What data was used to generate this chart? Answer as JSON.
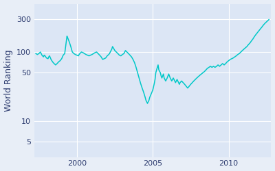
{
  "title": "",
  "ylabel": "World Ranking",
  "xlabel": "",
  "line_color": "#00c8c8",
  "background_color": "#e8eef7",
  "figure_facecolor": "#e8eef7",
  "axes_facecolor": "#dce6f5",
  "line_width": 1.1,
  "xlim_start": 1997.2,
  "xlim_end": 2012.8,
  "ylim_bottom": 3,
  "ylim_top": 500,
  "yticks": [
    5,
    10,
    50,
    100,
    300
  ],
  "xticks": [
    2000,
    2005,
    2010
  ],
  "spine_color": "#aaaacc",
  "data_points": [
    [
      1997.3,
      95
    ],
    [
      1997.4,
      92
    ],
    [
      1997.5,
      95
    ],
    [
      1997.6,
      100
    ],
    [
      1997.7,
      90
    ],
    [
      1997.8,
      85
    ],
    [
      1997.85,
      90
    ],
    [
      1997.9,
      88
    ],
    [
      1998.0,
      82
    ],
    [
      1998.1,
      80
    ],
    [
      1998.15,
      85
    ],
    [
      1998.2,
      88
    ],
    [
      1998.3,
      78
    ],
    [
      1998.4,
      72
    ],
    [
      1998.5,
      68
    ],
    [
      1998.6,
      65
    ],
    [
      1998.7,
      68
    ],
    [
      1998.8,
      72
    ],
    [
      1998.9,
      75
    ],
    [
      1999.0,
      80
    ],
    [
      1999.05,
      85
    ],
    [
      1999.1,
      90
    ],
    [
      1999.2,
      95
    ],
    [
      1999.3,
      140
    ],
    [
      1999.35,
      170
    ],
    [
      1999.4,
      160
    ],
    [
      1999.5,
      140
    ],
    [
      1999.6,
      120
    ],
    [
      1999.7,
      100
    ],
    [
      1999.8,
      95
    ],
    [
      1999.9,
      92
    ],
    [
      2000.0,
      90
    ],
    [
      2000.1,
      88
    ],
    [
      2000.15,
      92
    ],
    [
      2000.2,
      95
    ],
    [
      2000.3,
      100
    ],
    [
      2000.4,
      98
    ],
    [
      2000.5,
      95
    ],
    [
      2000.6,
      92
    ],
    [
      2000.7,
      90
    ],
    [
      2000.8,
      88
    ],
    [
      2000.9,
      90
    ],
    [
      2001.0,
      92
    ],
    [
      2001.1,
      95
    ],
    [
      2001.2,
      98
    ],
    [
      2001.3,
      100
    ],
    [
      2001.4,
      95
    ],
    [
      2001.5,
      90
    ],
    [
      2001.6,
      85
    ],
    [
      2001.7,
      78
    ],
    [
      2001.8,
      80
    ],
    [
      2001.9,
      82
    ],
    [
      2002.0,
      88
    ],
    [
      2002.1,
      92
    ],
    [
      2002.15,
      95
    ],
    [
      2002.2,
      100
    ],
    [
      2002.3,
      110
    ],
    [
      2002.35,
      120
    ],
    [
      2002.4,
      115
    ],
    [
      2002.5,
      105
    ],
    [
      2002.6,
      100
    ],
    [
      2002.7,
      95
    ],
    [
      2002.8,
      90
    ],
    [
      2002.9,
      88
    ],
    [
      2003.0,
      92
    ],
    [
      2003.1,
      95
    ],
    [
      2003.15,
      100
    ],
    [
      2003.2,
      105
    ],
    [
      2003.3,
      100
    ],
    [
      2003.4,
      95
    ],
    [
      2003.5,
      90
    ],
    [
      2003.6,
      85
    ],
    [
      2003.7,
      78
    ],
    [
      2003.8,
      70
    ],
    [
      2003.9,
      60
    ],
    [
      2004.0,
      50
    ],
    [
      2004.1,
      42
    ],
    [
      2004.2,
      35
    ],
    [
      2004.3,
      30
    ],
    [
      2004.4,
      26
    ],
    [
      2004.5,
      22
    ],
    [
      2004.55,
      20
    ],
    [
      2004.6,
      19
    ],
    [
      2004.65,
      18
    ],
    [
      2004.7,
      19
    ],
    [
      2004.75,
      20
    ],
    [
      2004.8,
      22
    ],
    [
      2005.0,
      28
    ],
    [
      2005.1,
      35
    ],
    [
      2005.15,
      40
    ],
    [
      2005.2,
      50
    ],
    [
      2005.3,
      60
    ],
    [
      2005.35,
      65
    ],
    [
      2005.4,
      55
    ],
    [
      2005.5,
      50
    ],
    [
      2005.55,
      45
    ],
    [
      2005.6,
      42
    ],
    [
      2005.65,
      45
    ],
    [
      2005.7,
      48
    ],
    [
      2005.75,
      42
    ],
    [
      2005.8,
      40
    ],
    [
      2005.85,
      38
    ],
    [
      2005.9,
      40
    ],
    [
      2005.95,
      42
    ],
    [
      2006.0,
      45
    ],
    [
      2006.05,
      48
    ],
    [
      2006.1,
      45
    ],
    [
      2006.15,
      42
    ],
    [
      2006.2,
      40
    ],
    [
      2006.25,
      38
    ],
    [
      2006.3,
      40
    ],
    [
      2006.35,
      42
    ],
    [
      2006.4,
      40
    ],
    [
      2006.45,
      38
    ],
    [
      2006.5,
      36
    ],
    [
      2006.55,
      38
    ],
    [
      2006.6,
      40
    ],
    [
      2006.65,
      38
    ],
    [
      2006.7,
      36
    ],
    [
      2006.75,
      34
    ],
    [
      2006.8,
      36
    ],
    [
      2006.9,
      38
    ],
    [
      2007.0,
      36
    ],
    [
      2007.1,
      34
    ],
    [
      2007.2,
      32
    ],
    [
      2007.3,
      30
    ],
    [
      2007.4,
      32
    ],
    [
      2007.5,
      34
    ],
    [
      2007.6,
      36
    ],
    [
      2007.7,
      38
    ],
    [
      2007.8,
      40
    ],
    [
      2007.9,
      42
    ],
    [
      2008.0,
      44
    ],
    [
      2008.1,
      46
    ],
    [
      2008.2,
      48
    ],
    [
      2008.3,
      50
    ],
    [
      2008.4,
      52
    ],
    [
      2008.5,
      55
    ],
    [
      2008.6,
      58
    ],
    [
      2008.7,
      60
    ],
    [
      2008.8,
      62
    ],
    [
      2008.9,
      60
    ],
    [
      2009.0,
      62
    ],
    [
      2009.1,
      60
    ],
    [
      2009.2,
      62
    ],
    [
      2009.3,
      65
    ],
    [
      2009.4,
      62
    ],
    [
      2009.5,
      65
    ],
    [
      2009.6,
      68
    ],
    [
      2009.7,
      65
    ],
    [
      2009.8,
      68
    ],
    [
      2009.9,
      72
    ],
    [
      2010.0,
      75
    ],
    [
      2010.1,
      78
    ],
    [
      2010.2,
      80
    ],
    [
      2010.3,
      82
    ],
    [
      2010.4,
      85
    ],
    [
      2010.5,
      88
    ],
    [
      2010.6,
      92
    ],
    [
      2010.7,
      95
    ],
    [
      2010.8,
      100
    ],
    [
      2010.9,
      105
    ],
    [
      2011.0,
      110
    ],
    [
      2011.1,
      115
    ],
    [
      2011.2,
      120
    ],
    [
      2011.3,
      128
    ],
    [
      2011.4,
      135
    ],
    [
      2011.5,
      145
    ],
    [
      2011.6,
      155
    ],
    [
      2011.7,
      168
    ],
    [
      2011.8,
      180
    ],
    [
      2011.9,
      192
    ],
    [
      2012.0,
      205
    ],
    [
      2012.1,
      218
    ],
    [
      2012.2,
      232
    ],
    [
      2012.3,
      248
    ],
    [
      2012.4,
      262
    ],
    [
      2012.5,
      275
    ],
    [
      2012.6,
      288
    ],
    [
      2012.65,
      295
    ]
  ]
}
